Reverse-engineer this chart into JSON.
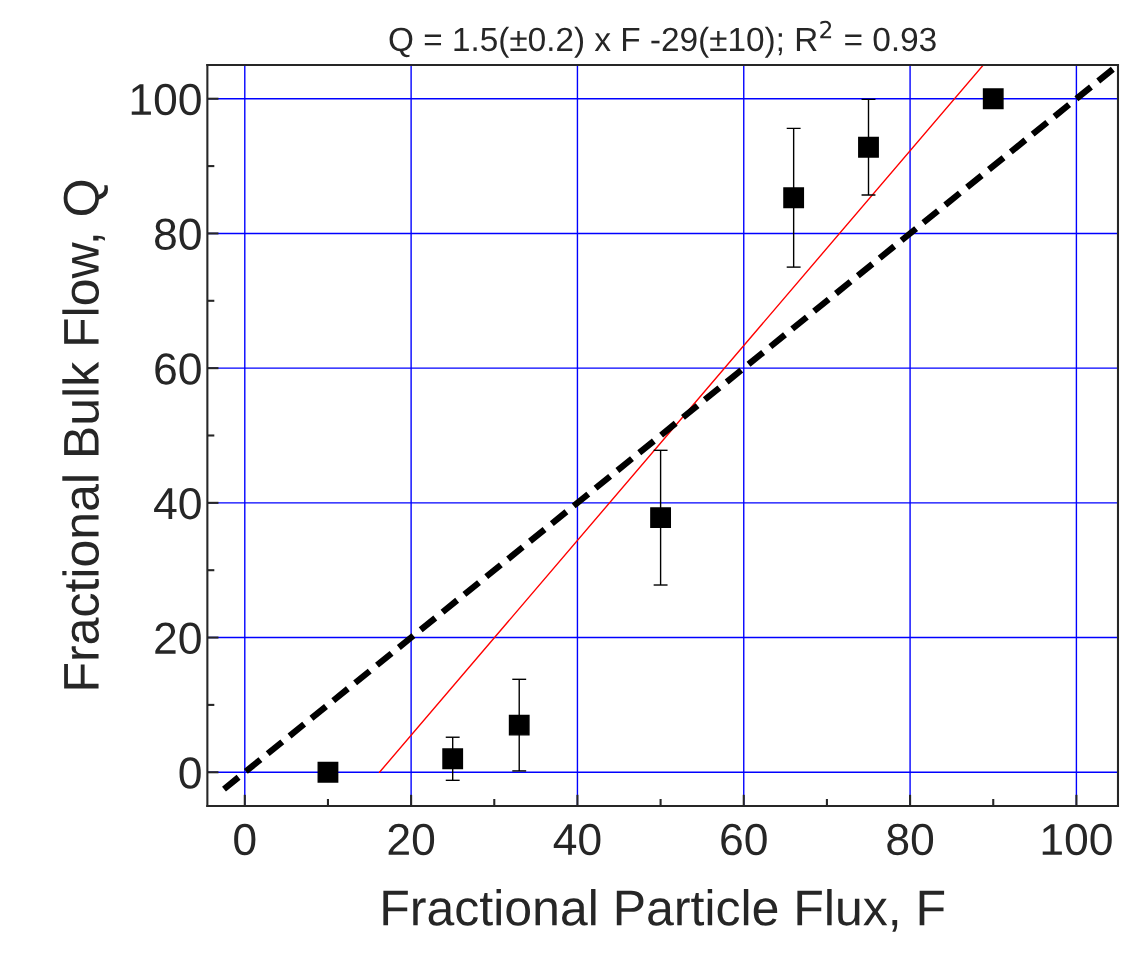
{
  "chart_data": {
    "type": "scatter",
    "title": "Q = 1.5(±0.2) x F -29(±10); R$^{2}$ = 0.93",
    "xlabel": "Fractional Particle Flux, F",
    "ylabel": "Fractional Bulk Flow, Q",
    "xlim": [
      -4.5,
      105
    ],
    "ylim": [
      -5,
      105
    ],
    "xticks": [
      0,
      20,
      40,
      60,
      80,
      100
    ],
    "yticks": [
      0,
      20,
      40,
      60,
      80,
      100
    ],
    "grid": true,
    "legend": false,
    "series": [
      {
        "color": "#000000",
        "marker": "square",
        "x": [
          10,
          25,
          33,
          50,
          66,
          75,
          90
        ],
        "values": [
          0,
          2,
          7,
          37.8,
          85.3,
          92.8,
          100
        ],
        "errors": [
          null,
          3.2,
          6.8,
          10,
          10.3,
          7.1,
          null
        ]
      },
      {
        "type": "line",
        "color": "#ff0000",
        "line_style": "solid",
        "marker": "none",
        "x": [
          16.2,
          88.8
        ],
        "values": [
          0,
          105
        ]
      },
      {
        "type": "line",
        "color": "#000000",
        "line_style": "dashed",
        "marker": "none",
        "x": [
          -2.5,
          104.8
        ],
        "values": [
          -2.5,
          104.8
        ]
      }
    ]
  }
}
